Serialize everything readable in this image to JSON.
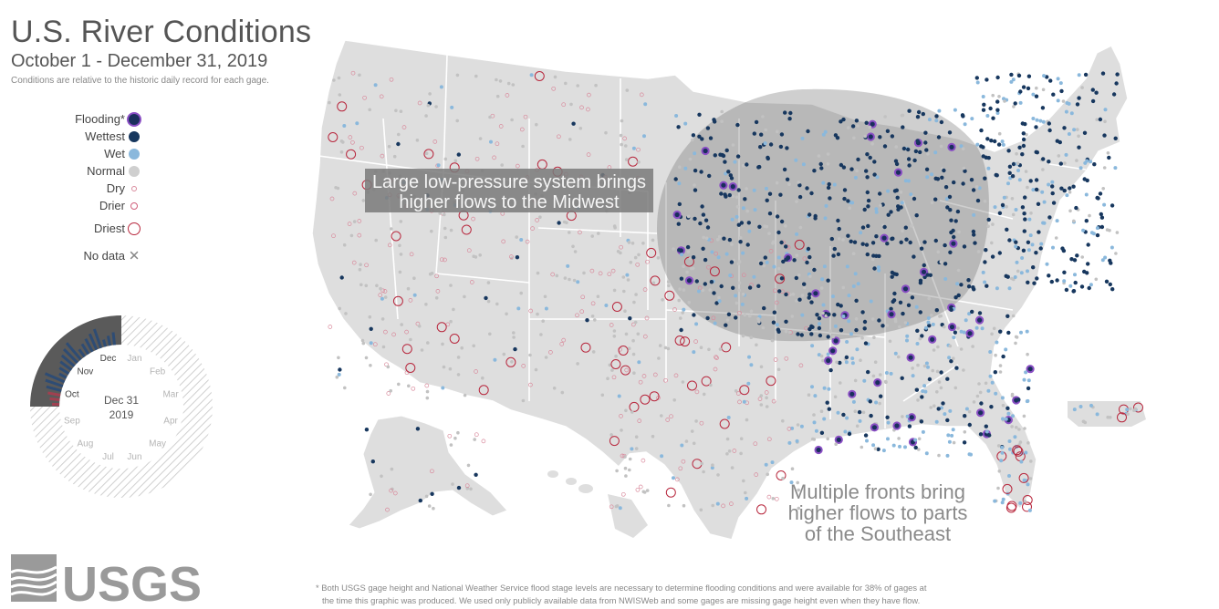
{
  "header": {
    "title": "U.S. River Conditions",
    "subtitle": "October 1 - December 31, 2019",
    "note": "Conditions are relative to the historic daily record for each gage."
  },
  "legend": {
    "items": [
      {
        "label": "Flooding*",
        "symbol": "flooding"
      },
      {
        "label": "Wettest",
        "symbol": "wettest"
      },
      {
        "label": "Wet",
        "symbol": "wet"
      },
      {
        "label": "Normal",
        "symbol": "normal"
      },
      {
        "label": "Dry",
        "symbol": "dry"
      },
      {
        "label": "Drier",
        "symbol": "drier"
      },
      {
        "label": "Driest",
        "symbol": "driest"
      },
      {
        "label": "No data",
        "symbol": "no-data"
      }
    ]
  },
  "clock": {
    "months": [
      "Jan",
      "Feb",
      "Mar",
      "Apr",
      "May",
      "Jun",
      "Jul",
      "Aug",
      "Sep",
      "Oct",
      "Nov",
      "Dec"
    ],
    "highlighted_months": [
      "Oct",
      "Nov",
      "Dec"
    ],
    "date_line1": "Dec 31",
    "date_line2": "2019"
  },
  "annotations": {
    "midwest_line1": "Large low-pressure system brings",
    "midwest_line2": "higher flows to the Midwest",
    "southeast_line1": "Multiple fronts bring",
    "southeast_line2": "higher flows to parts",
    "southeast_line3": "of the Southeast"
  },
  "footnote": {
    "line1": "* Both USGS gage height and National Weather Service flood stage levels are necessary to determine flooding conditions and were available for 38% of gages at",
    "line2": "the time this graphic was produced. We used only publicly available data from NWISWeb and some gages are missing gage height even when they have flow."
  },
  "logo": {
    "text": "USGS"
  },
  "colors": {
    "flooding": "#8a4fc4",
    "wettest": "#17375e",
    "wet": "#8ab8dc",
    "normal": "#cfcfcf",
    "dry": "#d98a9c",
    "driest": "#b8283e",
    "land": "#dedede",
    "overlay": "#6a6a6a"
  }
}
